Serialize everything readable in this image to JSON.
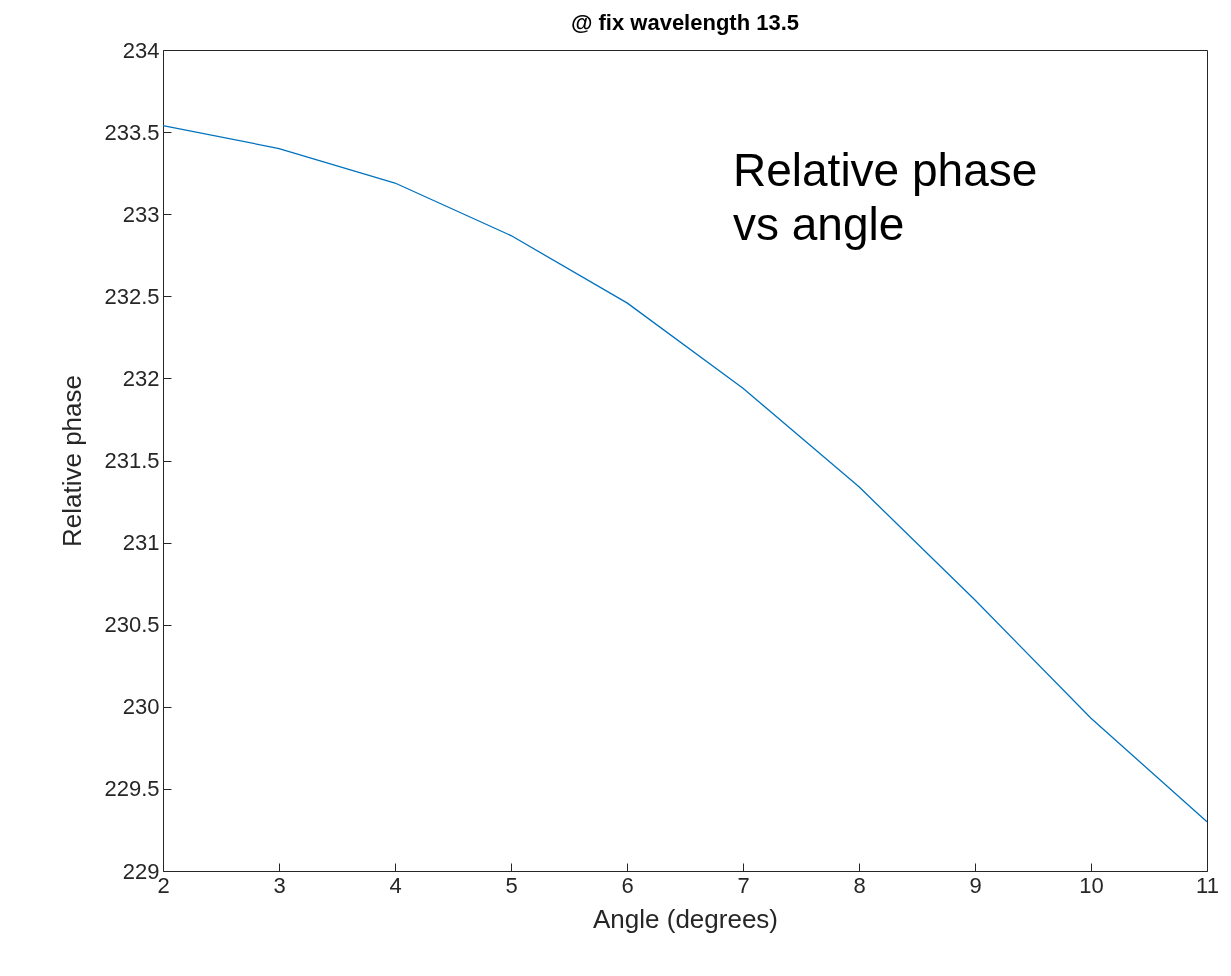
{
  "chart_data": {
    "type": "line",
    "title": "@ fix wavelength 13.5",
    "xlabel": "Angle (degrees)",
    "ylabel": "Relative phase",
    "x": [
      2,
      3,
      4,
      5,
      6,
      7,
      8,
      9,
      10,
      11
    ],
    "series": [
      {
        "color": "#0072bd",
        "values": [
          233.54,
          233.4,
          233.19,
          232.87,
          232.46,
          231.94,
          231.34,
          230.65,
          229.93,
          229.3
        ]
      }
    ],
    "xlim": [
      2,
      11
    ],
    "xticks": [
      2,
      3,
      4,
      5,
      6,
      7,
      8,
      9,
      10,
      11
    ],
    "ylim": [
      229,
      234
    ],
    "yticks": [
      229,
      229.5,
      230,
      230.5,
      231,
      231.5,
      232,
      232.5,
      233,
      233.5,
      234
    ],
    "annotations": [
      "Relative phase\nvs angle"
    ],
    "grid": false,
    "marker": "none",
    "line_style": "solid"
  }
}
